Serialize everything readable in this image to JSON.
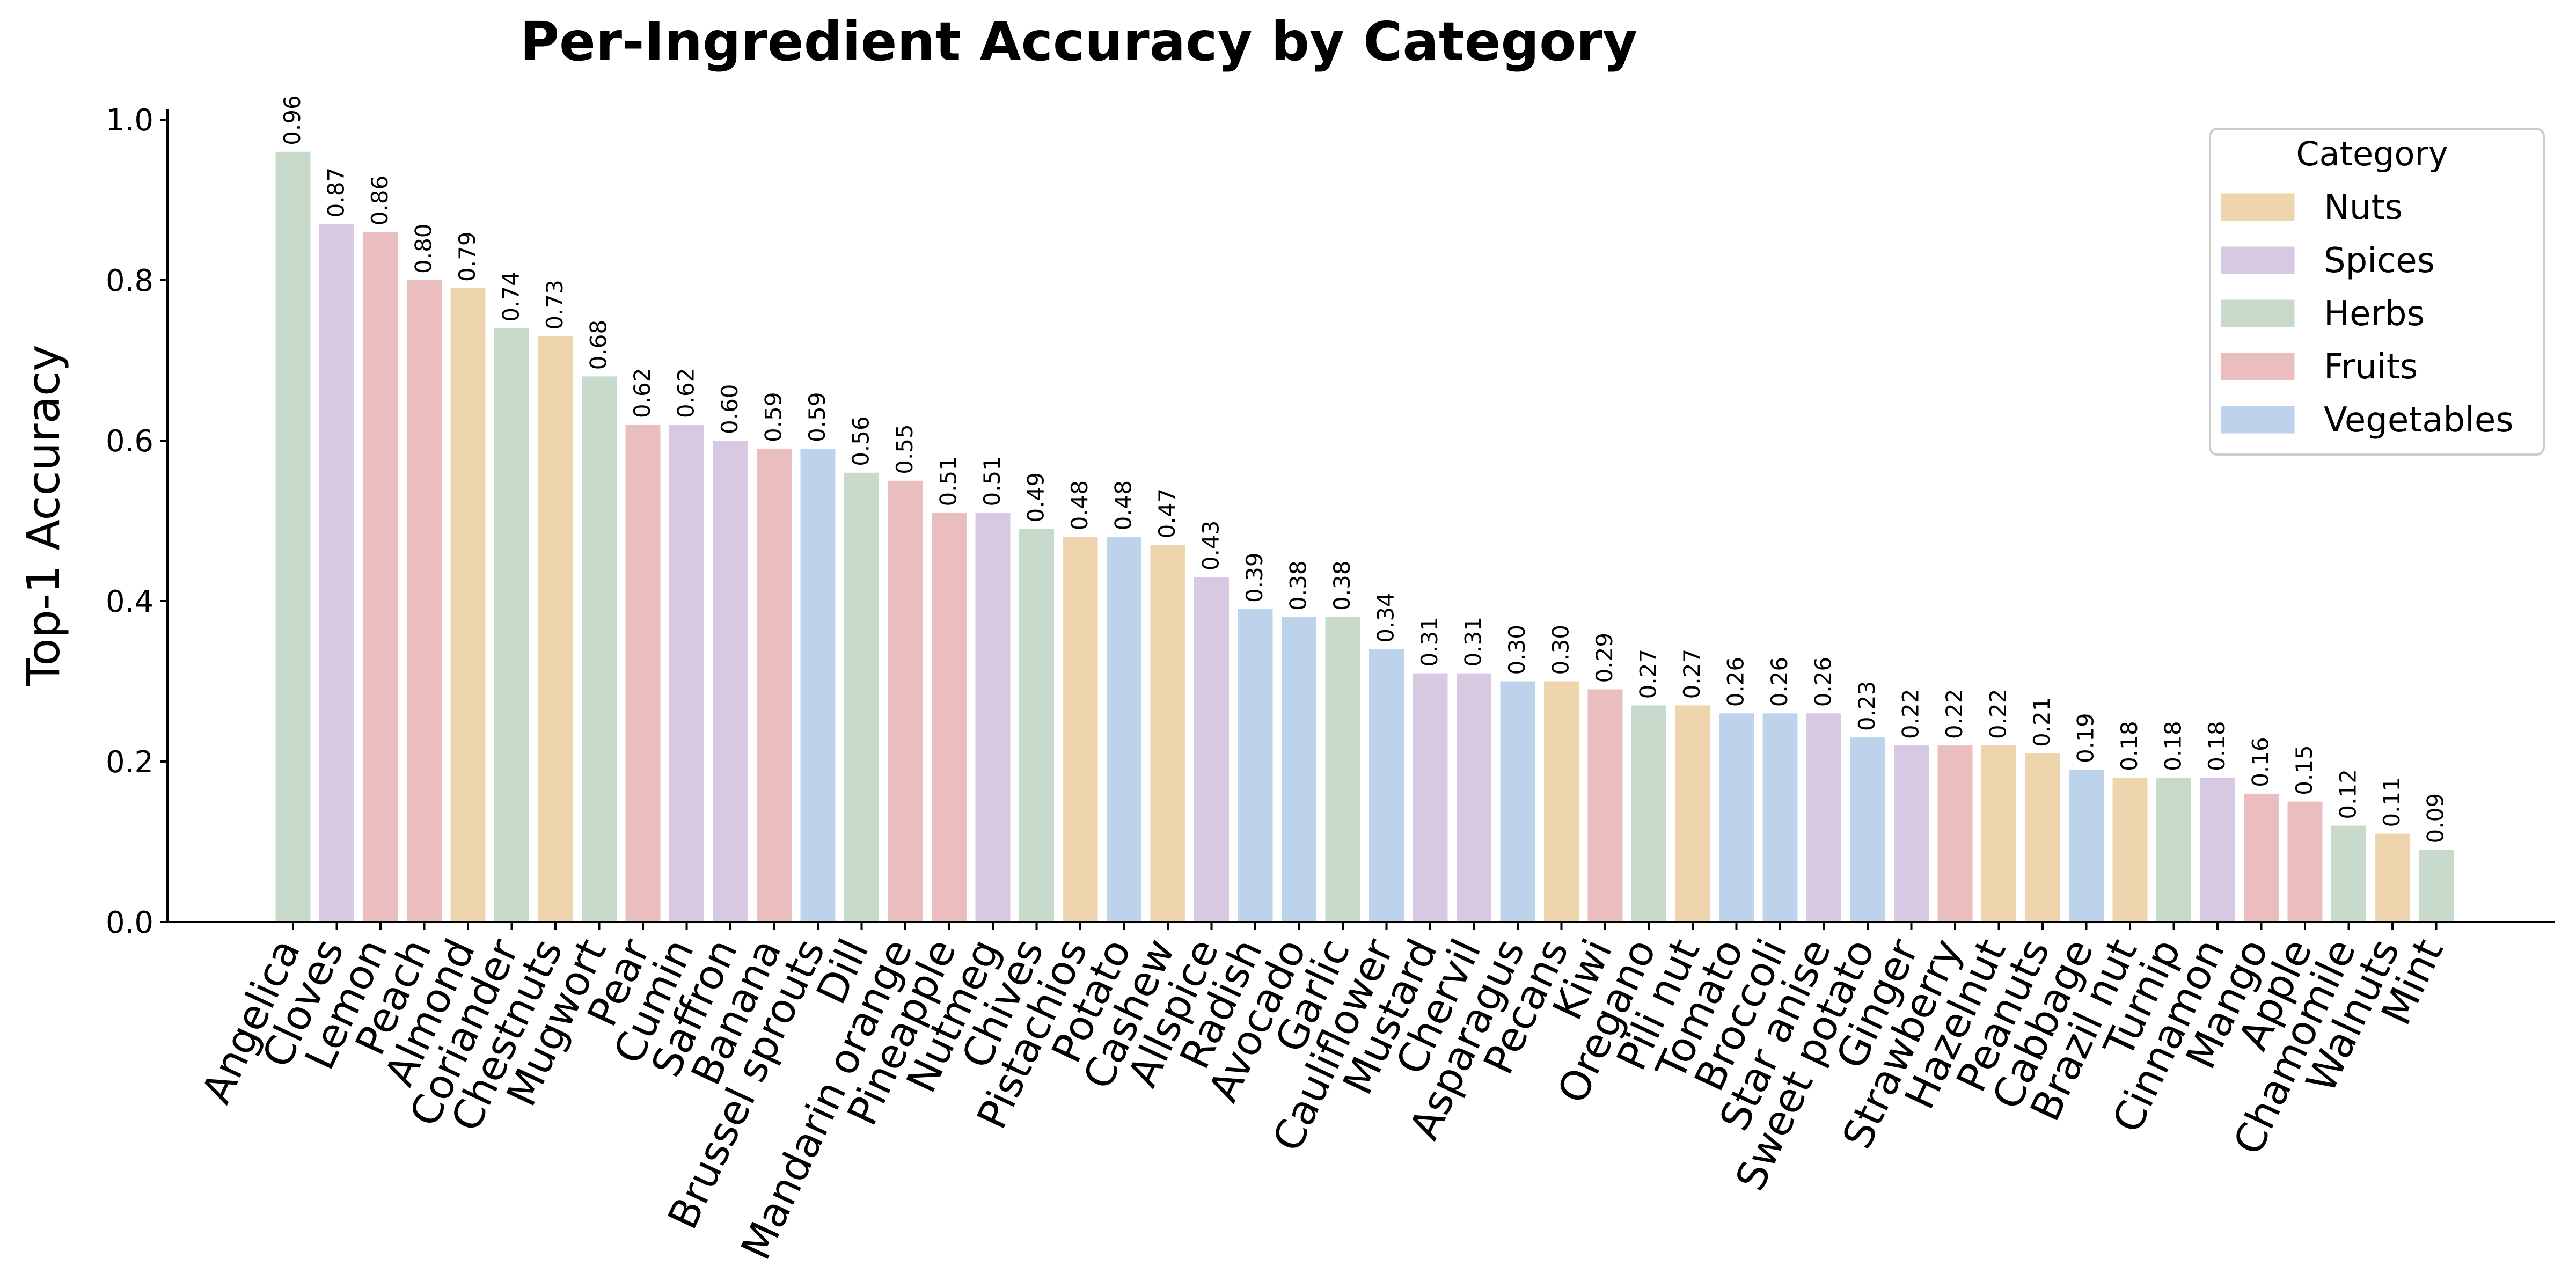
{
  "chart_data": {
    "type": "bar",
    "title": "Per-Ingredient Accuracy by Category",
    "xlabel": "",
    "ylabel": "Top-1 Accuracy",
    "ylim": [
      0,
      1.0
    ],
    "yticks": [
      "0.0",
      "0.2",
      "0.4",
      "0.6",
      "0.8",
      "1.0"
    ],
    "grid": false,
    "legend": {
      "title": "Category",
      "placement": "top-right",
      "entries": [
        {
          "name": "Nuts",
          "color": "#eed5ae"
        },
        {
          "name": "Spices",
          "color": "#d8c9e3"
        },
        {
          "name": "Herbs",
          "color": "#c7dacb"
        },
        {
          "name": "Fruits",
          "color": "#eabdbf"
        },
        {
          "name": "Vegetables",
          "color": "#bdd3eb"
        }
      ]
    },
    "bars": [
      {
        "label": "Angelica",
        "value": 0.96,
        "value_label": "0.96",
        "category": "Herbs"
      },
      {
        "label": "Cloves",
        "value": 0.87,
        "value_label": "0.87",
        "category": "Spices"
      },
      {
        "label": "Lemon",
        "value": 0.86,
        "value_label": "0.86",
        "category": "Fruits"
      },
      {
        "label": "Peach",
        "value": 0.8,
        "value_label": "0.80",
        "category": "Fruits"
      },
      {
        "label": "Almond",
        "value": 0.79,
        "value_label": "0.79",
        "category": "Nuts"
      },
      {
        "label": "Coriander",
        "value": 0.74,
        "value_label": "0.74",
        "category": "Herbs"
      },
      {
        "label": "Chestnuts",
        "value": 0.73,
        "value_label": "0.73",
        "category": "Nuts"
      },
      {
        "label": "Mugwort",
        "value": 0.68,
        "value_label": "0.68",
        "category": "Herbs"
      },
      {
        "label": "Pear",
        "value": 0.62,
        "value_label": "0.62",
        "category": "Fruits"
      },
      {
        "label": "Cumin",
        "value": 0.62,
        "value_label": "0.62",
        "category": "Spices"
      },
      {
        "label": "Saffron",
        "value": 0.6,
        "value_label": "0.60",
        "category": "Spices"
      },
      {
        "label": "Banana",
        "value": 0.59,
        "value_label": "0.59",
        "category": "Fruits"
      },
      {
        "label": "Brussel sprouts",
        "value": 0.59,
        "value_label": "0.59",
        "category": "Vegetables"
      },
      {
        "label": "Dill",
        "value": 0.56,
        "value_label": "0.56",
        "category": "Herbs"
      },
      {
        "label": "Mandarin orange",
        "value": 0.55,
        "value_label": "0.55",
        "category": "Fruits"
      },
      {
        "label": "Pineapple",
        "value": 0.51,
        "value_label": "0.51",
        "category": "Fruits"
      },
      {
        "label": "Nutmeg",
        "value": 0.51,
        "value_label": "0.51",
        "category": "Spices"
      },
      {
        "label": "Chives",
        "value": 0.49,
        "value_label": "0.49",
        "category": "Herbs"
      },
      {
        "label": "Pistachios",
        "value": 0.48,
        "value_label": "0.48",
        "category": "Nuts"
      },
      {
        "label": "Potato",
        "value": 0.48,
        "value_label": "0.48",
        "category": "Vegetables"
      },
      {
        "label": "Cashew",
        "value": 0.47,
        "value_label": "0.47",
        "category": "Nuts"
      },
      {
        "label": "Allspice",
        "value": 0.43,
        "value_label": "0.43",
        "category": "Spices"
      },
      {
        "label": "Radish",
        "value": 0.39,
        "value_label": "0.39",
        "category": "Vegetables"
      },
      {
        "label": "Avocado",
        "value": 0.38,
        "value_label": "0.38",
        "category": "Vegetables"
      },
      {
        "label": "Garlic",
        "value": 0.38,
        "value_label": "0.38",
        "category": "Herbs"
      },
      {
        "label": "Cauliflower",
        "value": 0.34,
        "value_label": "0.34",
        "category": "Vegetables"
      },
      {
        "label": "Mustard",
        "value": 0.31,
        "value_label": "0.31",
        "category": "Spices"
      },
      {
        "label": "Chervil",
        "value": 0.31,
        "value_label": "0.31",
        "category": "Spices"
      },
      {
        "label": "Asparagus",
        "value": 0.3,
        "value_label": "0.30",
        "category": "Vegetables"
      },
      {
        "label": "Pecans",
        "value": 0.3,
        "value_label": "0.30",
        "category": "Nuts"
      },
      {
        "label": "Kiwi",
        "value": 0.29,
        "value_label": "0.29",
        "category": "Fruits"
      },
      {
        "label": "Oregano",
        "value": 0.27,
        "value_label": "0.27",
        "category": "Herbs"
      },
      {
        "label": "Pili nut",
        "value": 0.27,
        "value_label": "0.27",
        "category": "Nuts"
      },
      {
        "label": "Tomato",
        "value": 0.26,
        "value_label": "0.26",
        "category": "Vegetables"
      },
      {
        "label": "Broccoli",
        "value": 0.26,
        "value_label": "0.26",
        "category": "Vegetables"
      },
      {
        "label": "Star anise",
        "value": 0.26,
        "value_label": "0.26",
        "category": "Spices"
      },
      {
        "label": "Sweet potato",
        "value": 0.23,
        "value_label": "0.23",
        "category": "Vegetables"
      },
      {
        "label": "Ginger",
        "value": 0.22,
        "value_label": "0.22",
        "category": "Spices"
      },
      {
        "label": "Strawberry",
        "value": 0.22,
        "value_label": "0.22",
        "category": "Fruits"
      },
      {
        "label": "Hazelnut",
        "value": 0.22,
        "value_label": "0.22",
        "category": "Nuts"
      },
      {
        "label": "Peanuts",
        "value": 0.21,
        "value_label": "0.21",
        "category": "Nuts"
      },
      {
        "label": "Cabbage",
        "value": 0.19,
        "value_label": "0.19",
        "category": "Vegetables"
      },
      {
        "label": "Brazil nut",
        "value": 0.18,
        "value_label": "0.18",
        "category": "Nuts"
      },
      {
        "label": "Turnip",
        "value": 0.18,
        "value_label": "0.18",
        "category": "Herbs"
      },
      {
        "label": "Cinnamon",
        "value": 0.18,
        "value_label": "0.18",
        "category": "Spices"
      },
      {
        "label": "Mango",
        "value": 0.16,
        "value_label": "0.16",
        "category": "Fruits"
      },
      {
        "label": "Apple",
        "value": 0.15,
        "value_label": "0.15",
        "category": "Fruits"
      },
      {
        "label": "Chamomile",
        "value": 0.12,
        "value_label": "0.12",
        "category": "Herbs"
      },
      {
        "label": "Walnuts",
        "value": 0.11,
        "value_label": "0.11",
        "category": "Nuts"
      },
      {
        "label": "Mint",
        "value": 0.09,
        "value_label": "0.09",
        "category": "Herbs"
      }
    ]
  }
}
